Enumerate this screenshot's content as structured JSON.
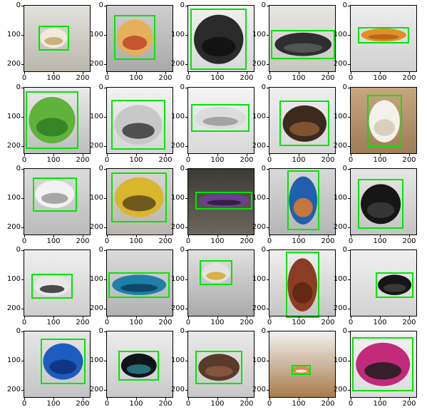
{
  "figure": {
    "rows": 5,
    "cols": 5,
    "x_tick_labels": [
      "0",
      "100",
      "200"
    ],
    "y_tick_labels": [
      "0",
      "100",
      "200"
    ],
    "box_color": "#00e600",
    "panels": [
      {
        "subject": "packaged snack bar",
        "bg": [
          "#e3e1dc",
          "#b9b6ad"
        ],
        "obj": [
          "#f1ead9",
          "#c7a76c"
        ],
        "box": [
          [
            48,
            68
          ],
          [
            153,
            153
          ]
        ]
      },
      {
        "subject": "bag of chips",
        "bg": [
          "#cfcfcf",
          "#a9a9a9"
        ],
        "obj": [
          "#e5b05a",
          "#c0442a"
        ],
        "box": [
          [
            25,
            32
          ],
          [
            165,
            185
          ]
        ]
      },
      {
        "subject": "black slip-on shoe",
        "bg": [
          "#f0f0f0",
          "#d8d8d8"
        ],
        "obj": [
          "#2a2a2a",
          "#0f0f0f"
        ],
        "box": [
          [
            8,
            10
          ],
          [
            200,
            220
          ]
        ]
      },
      {
        "subject": "black sport sandal",
        "bg": [
          "#e8e6e2",
          "#c9c6c0"
        ],
        "obj": [
          "#2e2e2e",
          "#5a5a5a"
        ],
        "box": [
          [
            5,
            82
          ],
          [
            225,
            182
          ]
        ]
      },
      {
        "subject": "orange sneaker sole",
        "bg": [
          "#ededed",
          "#d0d0d0"
        ],
        "obj": [
          "#e38e2c",
          "#b2601a"
        ],
        "box": [
          [
            25,
            72
          ],
          [
            200,
            128
          ]
        ]
      },
      {
        "subject": "green snack packet",
        "bg": [
          "#e9e9e9",
          "#bdbdbd"
        ],
        "obj": [
          "#5fb23a",
          "#2f7d24"
        ],
        "box": [
          [
            5,
            12
          ],
          [
            185,
            210
          ]
        ]
      },
      {
        "subject": "white running shoe",
        "bg": [
          "#f2f2f2",
          "#d5d5d5"
        ],
        "obj": [
          "#c8c8c8",
          "#3a3a3a"
        ],
        "box": [
          [
            15,
            42
          ],
          [
            200,
            212
          ]
        ]
      },
      {
        "subject": "white sneaker",
        "bg": [
          "#f4f4f4",
          "#d9d9d9"
        ],
        "obj": [
          "#dcdcdc",
          "#9a9a9a"
        ],
        "box": [
          [
            10,
            55
          ],
          [
            210,
            152
          ]
        ]
      },
      {
        "subject": "brown strappy sandal",
        "bg": [
          "#efefef",
          "#d6d6d6"
        ],
        "obj": [
          "#3c2a1f",
          "#8a5a32"
        ],
        "box": [
          [
            35,
            45
          ],
          [
            205,
            200
          ]
        ]
      },
      {
        "subject": "plastic food container",
        "bg": [
          "#c6a77f",
          "#9e7c56"
        ],
        "obj": [
          "#f4f1ea",
          "#d4c9b6"
        ],
        "box": [
          [
            55,
            25
          ],
          [
            175,
            205
          ]
        ]
      },
      {
        "subject": "printed product label",
        "bg": [
          "#dcdcdc",
          "#bababa"
        ],
        "obj": [
          "#f2f2f2",
          "#9a9a9a"
        ],
        "box": [
          [
            28,
            28
          ],
          [
            180,
            145
          ]
        ]
      },
      {
        "subject": "yellow product box",
        "bg": [
          "#d8d6d2",
          "#b8b5ae"
        ],
        "obj": [
          "#d9b62d",
          "#5a4a1e"
        ],
        "box": [
          [
            15,
            12
          ],
          [
            205,
            182
          ]
        ]
      },
      {
        "subject": "purple cosmetic tube",
        "bg": [
          "#3d3a35",
          "#6c685f"
        ],
        "obj": [
          "#6d3f8f",
          "#2a1c33"
        ],
        "box": [
          [
            25,
            78
          ],
          [
            220,
            138
          ]
        ]
      },
      {
        "subject": "cosmetic jar",
        "bg": [
          "#d8d8d8",
          "#b5b5b5"
        ],
        "obj": [
          "#1f5fae",
          "#e07a2a"
        ],
        "box": [
          [
            60,
            5
          ],
          [
            170,
            210
          ]
        ]
      },
      {
        "subject": "black sneaker",
        "bg": [
          "#e6e6e6",
          "#c4c4c4"
        ],
        "obj": [
          "#161616",
          "#3b3b3b"
        ],
        "box": [
          [
            25,
            35
          ],
          [
            180,
            205
          ]
        ]
      },
      {
        "subject": "white slip-on shoe",
        "bg": [
          "#efefef",
          "#cdcdcd"
        ],
        "obj": [
          "#e9e9e9",
          "#2e2e2e"
        ],
        "box": [
          [
            25,
            80
          ],
          [
            165,
            165
          ]
        ]
      },
      {
        "subject": "blue running shoe",
        "bg": [
          "#dadada",
          "#b1b1b1"
        ],
        "obj": [
          "#1f7fa6",
          "#0b3f5a"
        ],
        "box": [
          [
            5,
            75
          ],
          [
            215,
            162
          ]
        ]
      },
      {
        "subject": "white yellow sneaker",
        "bg": [
          "#e1e1e1",
          "#a9a9a9"
        ],
        "obj": [
          "#e2e2e2",
          "#d2a82a"
        ],
        "box": [
          [
            40,
            35
          ],
          [
            150,
            120
          ]
        ]
      },
      {
        "subject": "brown handbag",
        "bg": [
          "#efefef",
          "#c5c5c5"
        ],
        "obj": [
          "#8b3d23",
          "#5e2410"
        ],
        "box": [
          [
            55,
            5
          ],
          [
            170,
            232
          ]
        ]
      },
      {
        "subject": "black sneaker on white",
        "bg": [
          "#f0f0f0",
          "#d2d2d2"
        ],
        "obj": [
          "#151515",
          "#3e3e3e"
        ],
        "box": [
          [
            85,
            75
          ],
          [
            215,
            162
          ]
        ]
      },
      {
        "subject": "blue knit sneaker",
        "bg": [
          "#e6e6e6",
          "#c4c4c4"
        ],
        "obj": [
          "#1d5dbf",
          "#0e2f7a"
        ],
        "box": [
          [
            55,
            25
          ],
          [
            210,
            180
          ]
        ]
      },
      {
        "subject": "dark product tin",
        "bg": [
          "#ececec",
          "#c9c9c9"
        ],
        "obj": [
          "#0f1418",
          "#2a7d8c"
        ],
        "box": [
          [
            40,
            65
          ],
          [
            178,
            168
          ]
        ]
      },
      {
        "subject": "shoe sole",
        "bg": [
          "#e9e9e9",
          "#c8c8c8"
        ],
        "obj": [
          "#5a3a2a",
          "#8a5a3f"
        ],
        "box": [
          [
            25,
            65
          ],
          [
            185,
            180
          ]
        ]
      },
      {
        "subject": "small box on desk",
        "bg": [
          "#f1f1f1",
          "#a97a4a"
        ],
        "obj": [
          "#d98a4a",
          "#f1f1f1"
        ],
        "box": [
          [
            75,
            115
          ],
          [
            142,
            148
          ]
        ]
      },
      {
        "subject": "colorful spatulas",
        "bg": [
          "#f2f2f2",
          "#dcdcdc"
        ],
        "obj": [
          "#c12a7a",
          "#1d1d1d"
        ],
        "box": [
          [
            5,
            20
          ],
          [
            215,
            205
          ]
        ]
      }
    ]
  }
}
